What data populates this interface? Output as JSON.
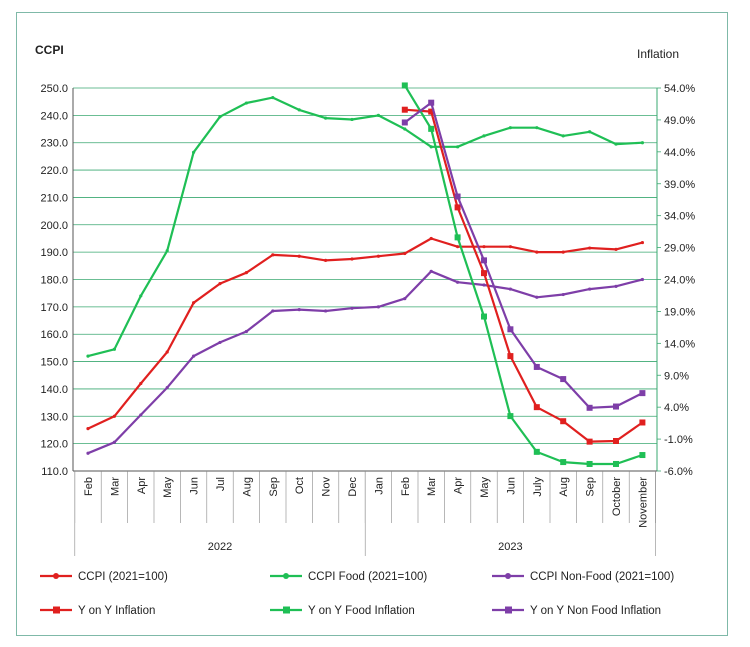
{
  "chart_data": {
    "type": "line",
    "left_axis_title": "CCPI",
    "right_axis_title": "Inflation",
    "left_ticks": [
      "250.0",
      "240.0",
      "230.0",
      "220.0",
      "210.0",
      "200.0",
      "190.0",
      "180.0",
      "170.0",
      "160.0",
      "150.0",
      "140.0",
      "130.0",
      "120.0",
      "110.0"
    ],
    "right_ticks": [
      "54.0%",
      "49.0%",
      "44.0%",
      "39.0%",
      "34.0%",
      "29.0%",
      "24.0%",
      "19.0%",
      "14.0%",
      "9.0%",
      "4.0%",
      "-1.0%",
      "-6.0%"
    ],
    "left_ylim": [
      110,
      250
    ],
    "right_ylim": [
      -6,
      54
    ],
    "months": [
      "Feb",
      "Mar",
      "Apr",
      "May",
      "Jun",
      "Jul",
      "Aug",
      "Sep",
      "Oct",
      "Nov",
      "Dec",
      "Jan",
      "Feb",
      "Mar",
      "Apr",
      "May",
      "Jun",
      "July",
      "Aug",
      "Sep",
      "October",
      "November"
    ],
    "years": [
      {
        "label": "2022",
        "start": 0,
        "end": 10
      },
      {
        "label": "2023",
        "start": 11,
        "end": 21
      }
    ],
    "series": [
      {
        "name": "CCPI  (2021=100)",
        "axis": "left",
        "color": "#e0201f",
        "marker": "none",
        "start": 0,
        "values": [
          125.5,
          130,
          142,
          153.5,
          171.5,
          178.5,
          182.5,
          189,
          188.5,
          187,
          187.5,
          188.5,
          189.5,
          195,
          192,
          192,
          192,
          190,
          190,
          191.5,
          191,
          193.5
        ]
      },
      {
        "name": "CCPI Food (2021=100)",
        "axis": "left",
        "color": "#1fbf55",
        "marker": "none",
        "start": 0,
        "values": [
          152,
          154.5,
          174,
          190.5,
          226.5,
          239.5,
          244.5,
          246.5,
          242,
          239,
          238.5,
          240,
          235,
          228.5,
          228.5,
          232.5,
          235.5,
          235.5,
          232.5,
          234,
          229.5,
          230
        ]
      },
      {
        "name": "CCPI Non-Food (2021=100)",
        "axis": "left",
        "color": "#7e3ea8",
        "marker": "none",
        "start": 0,
        "values": [
          116.5,
          120.5,
          130.5,
          140.5,
          152,
          157,
          161,
          168.5,
          169,
          168.5,
          169.5,
          170,
          173,
          183,
          179,
          178,
          176.5,
          173.5,
          174.5,
          176.5,
          177.5,
          180
        ]
      },
      {
        "name": "Y on Y  Inflation",
        "axis": "right",
        "color": "#e0201f",
        "marker": "square",
        "start": 12,
        "values": [
          50.6,
          50.3,
          35.3,
          25,
          12.0,
          4.0,
          1.8,
          -1.4,
          -1.3,
          1.6
        ]
      },
      {
        "name": "Y on Y  Food Inflation",
        "axis": "right",
        "color": "#1fbf55",
        "marker": "square",
        "start": 12,
        "values": [
          54.4,
          47.6,
          30.6,
          18.2,
          2.6,
          -3.0,
          -4.6,
          -4.9,
          -4.9,
          -3.5
        ]
      },
      {
        "name": "Y on Y  Non Food Inflation",
        "axis": "right",
        "color": "#7e3ea8",
        "marker": "square",
        "start": 12,
        "values": [
          48.6,
          51.7,
          37.0,
          27.0,
          16.2,
          10.3,
          8.4,
          3.9,
          4.1,
          6.2
        ]
      }
    ],
    "legend_position": "bottom",
    "grid": true
  }
}
